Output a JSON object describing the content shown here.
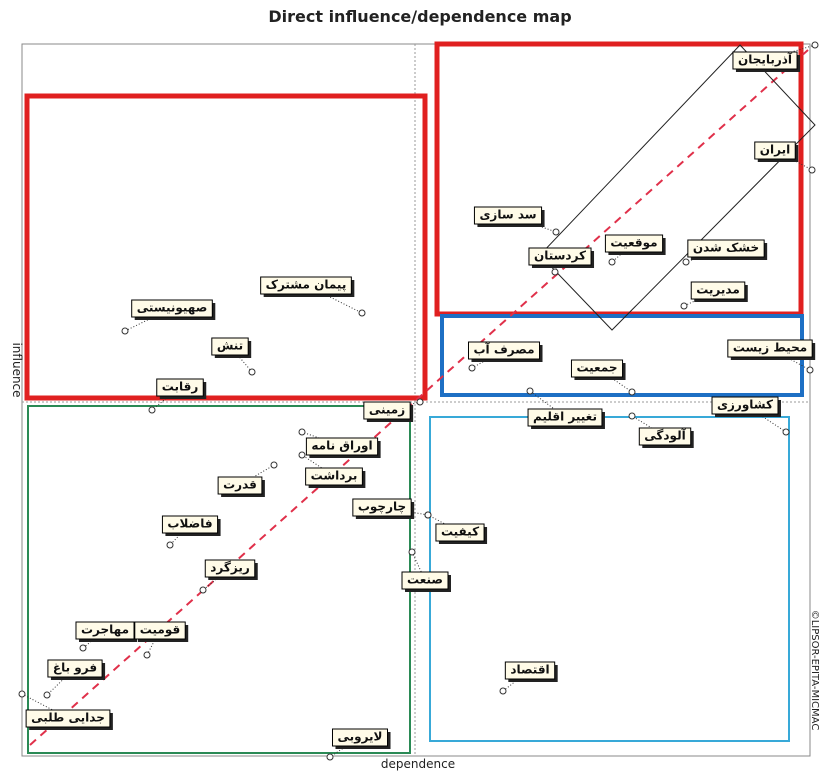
{
  "title": "Direct influence/dependence map",
  "x_axis_label": "dependence",
  "y_axis_label": "influence",
  "side_note": "©LIPSOR-EPITA-MICMAC",
  "nodes": [
    {
      "label": "آذربایجان"
    },
    {
      "label": "ایران"
    },
    {
      "label": "سد سازی"
    },
    {
      "label": "موقعیت"
    },
    {
      "label": "کردستان"
    },
    {
      "label": "خشک شدن"
    },
    {
      "label": "مدیریت"
    },
    {
      "label": "پیمان مشترک"
    },
    {
      "label": "صهیونیستی"
    },
    {
      "label": "تنش"
    },
    {
      "label": "رقابت"
    },
    {
      "label": "مصرف آب"
    },
    {
      "label": "جمعیت"
    },
    {
      "label": "محیط زیست"
    },
    {
      "label": "کشاورزی"
    },
    {
      "label": "تغییر اقلیم"
    },
    {
      "label": "آلودگی"
    },
    {
      "label": "زمینی"
    },
    {
      "label": "اوراق نامه"
    },
    {
      "label": "برداشت"
    },
    {
      "label": "قدرت"
    },
    {
      "label": "چارچوب"
    },
    {
      "label": "فاضلاب"
    },
    {
      "label": "کیفیت"
    },
    {
      "label": "ریزگرد"
    },
    {
      "label": "صنعت"
    },
    {
      "label": "مهاجرت"
    },
    {
      "label": "قومیت"
    },
    {
      "label": "فرو باغ"
    },
    {
      "label": "اقتصاد"
    },
    {
      "label": "جدایی طلبی"
    },
    {
      "label": "لایروبی"
    }
  ]
}
